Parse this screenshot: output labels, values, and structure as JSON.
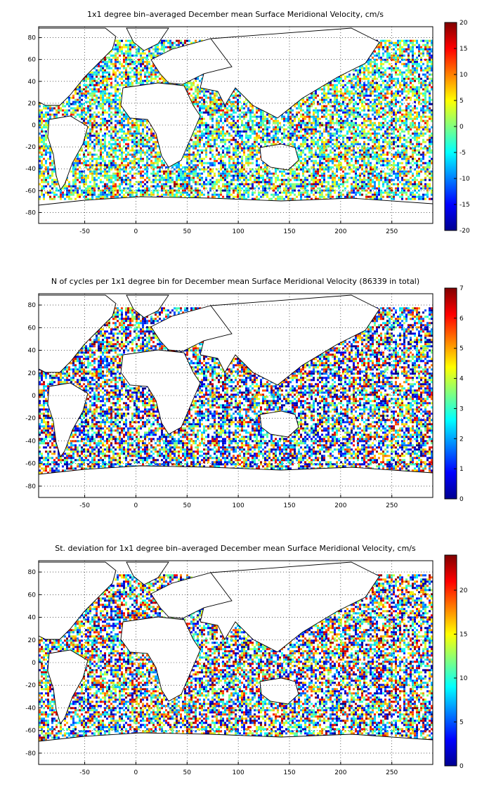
{
  "chart_data": [
    {
      "type": "heatmap",
      "title": "1x1 degree bin–averaged December mean Surface Meridional Velocity, cm/s",
      "xlabel": "",
      "ylabel": "",
      "xlim": [
        -95,
        290
      ],
      "ylim": [
        -90,
        90
      ],
      "x_ticks": [
        "-50",
        "0",
        "50",
        "100",
        "150",
        "200",
        "250"
      ],
      "x_tick_values": [
        -50,
        0,
        50,
        100,
        150,
        200,
        250
      ],
      "y_ticks": [
        "80",
        "60",
        "40",
        "20",
        "0",
        "-20",
        "-40",
        "-60",
        "-80"
      ],
      "y_tick_values": [
        80,
        60,
        40,
        20,
        0,
        -20,
        -40,
        -60,
        -80
      ],
      "colorbar": {
        "min": -20,
        "max": 20,
        "ticks": [
          "20",
          "15",
          "10",
          "5",
          "0",
          "-5",
          "-10",
          "-15",
          "-20"
        ],
        "tick_values": [
          20,
          15,
          10,
          5,
          0,
          -5,
          -10,
          -15,
          -20
        ],
        "colormap": "jet"
      },
      "grid": true,
      "background": "world coastline map, land white, ocean bins colored"
    },
    {
      "type": "heatmap",
      "title": "N of cycles per 1x1 degree bin for December mean Surface Meridional Velocity (86339 in total)",
      "xlabel": "",
      "ylabel": "",
      "xlim": [
        -95,
        290
      ],
      "ylim": [
        -90,
        90
      ],
      "x_ticks": [
        "-50",
        "0",
        "50",
        "100",
        "150",
        "200",
        "250"
      ],
      "x_tick_values": [
        -50,
        0,
        50,
        100,
        150,
        200,
        250
      ],
      "y_ticks": [
        "80",
        "60",
        "40",
        "20",
        "0",
        "-20",
        "-40",
        "-60",
        "-80"
      ],
      "y_tick_values": [
        80,
        60,
        40,
        20,
        0,
        -20,
        -40,
        -60,
        -80
      ],
      "colorbar": {
        "min": 0,
        "max": 7,
        "ticks": [
          "7",
          "6",
          "5",
          "4",
          "3",
          "2",
          "1",
          "0"
        ],
        "tick_values": [
          7,
          6,
          5,
          4,
          3,
          2,
          1,
          0
        ],
        "colormap": "jet"
      },
      "grid": true,
      "background": "world coastline map, land white, ocean bins colored"
    },
    {
      "type": "heatmap",
      "title": "St. deviation for 1x1 degree bin–averaged December mean Surface Meridional Velocity, cm/s",
      "xlabel": "",
      "ylabel": "",
      "xlim": [
        -95,
        290
      ],
      "ylim": [
        -90,
        90
      ],
      "x_ticks": [
        "-50",
        "0",
        "50",
        "100",
        "150",
        "200",
        "250"
      ],
      "x_tick_values": [
        -50,
        0,
        50,
        100,
        150,
        200,
        250
      ],
      "y_ticks": [
        "80",
        "60",
        "40",
        "20",
        "0",
        "-20",
        "-40",
        "-60",
        "-80"
      ],
      "y_tick_values": [
        80,
        60,
        40,
        20,
        0,
        -20,
        -40,
        -60,
        -80
      ],
      "colorbar": {
        "min": 0,
        "max": 24,
        "ticks": [
          "20",
          "15",
          "10",
          "5",
          "0"
        ],
        "tick_values": [
          20,
          15,
          10,
          5,
          0
        ],
        "colormap": "jet"
      },
      "grid": true,
      "background": "world coastline map, land white, ocean bins colored"
    }
  ]
}
